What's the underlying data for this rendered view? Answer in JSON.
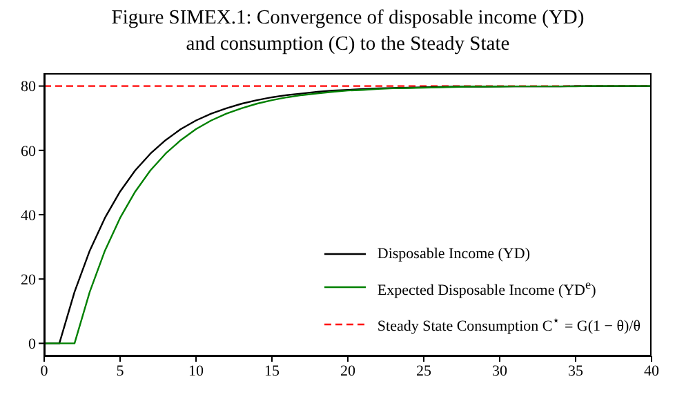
{
  "chart_data": {
    "type": "line",
    "title": "Figure SIMEX.1: Convergence of disposable income (YD)\nand consumption (C) to the Steady State",
    "x": [
      0,
      1,
      2,
      3,
      4,
      5,
      6,
      7,
      8,
      9,
      10,
      11,
      12,
      13,
      14,
      15,
      16,
      17,
      18,
      19,
      20,
      21,
      22,
      23,
      24,
      25,
      26,
      27,
      28,
      29,
      30,
      31,
      32,
      33,
      34,
      35,
      36,
      37,
      38,
      39,
      40
    ],
    "series": [
      {
        "name": "Disposable Income (YD)",
        "color": "#000000",
        "values": [
          0,
          0,
          16,
          28.8,
          39,
          47.2,
          53.8,
          59,
          63.2,
          66.6,
          69.3,
          71.4,
          73.1,
          74.5,
          75.6,
          76.5,
          77.2,
          77.7,
          78.2,
          78.6,
          78.8,
          79.1,
          79.3,
          79.4,
          79.5,
          79.6,
          79.7,
          79.8,
          79.8,
          79.8,
          79.9,
          79.9,
          79.9,
          79.9,
          79.9,
          80,
          80,
          80,
          80,
          80,
          80
        ]
      },
      {
        "name": "Expected Disposable Income (YD$^{e}$)",
        "color": "#008000",
        "values": [
          0,
          0,
          0,
          16,
          28.8,
          39,
          47.2,
          53.8,
          59,
          63.2,
          66.6,
          69.3,
          71.4,
          73.1,
          74.5,
          75.6,
          76.5,
          77.2,
          77.7,
          78.2,
          78.6,
          78.8,
          79.1,
          79.3,
          79.4,
          79.5,
          79.6,
          79.7,
          79.8,
          79.8,
          79.8,
          79.9,
          79.9,
          79.9,
          79.9,
          79.9,
          80,
          80,
          80,
          80,
          80
        ]
      }
    ],
    "ref_lines": [
      {
        "axis": "y",
        "value": 80,
        "label": "Steady State Consumption C$^{⋆}$ = G(1 − θ)/θ",
        "color": "#ff0000",
        "line_style": "dashed"
      }
    ],
    "xlim": [
      0,
      40
    ],
    "xticks": [
      0,
      5,
      10,
      15,
      20,
      25,
      30,
      35,
      40
    ],
    "ylim": [
      -4,
      84
    ],
    "yticks": [
      0,
      20,
      40,
      60,
      80
    ],
    "legend": "bottom right",
    "grid": false,
    "marker": "none",
    "line_style": "solid"
  }
}
